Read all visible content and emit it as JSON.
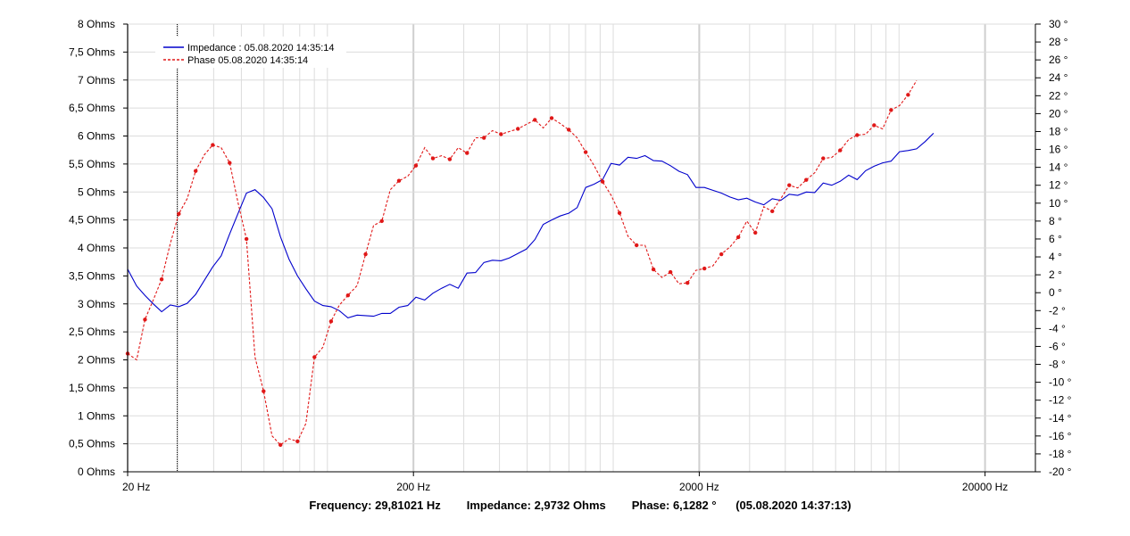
{
  "readout": {
    "frequency": "Frequency: 29,81021 Hz",
    "impedance": "Impedance: 2,9732 Ohms",
    "phase": "Phase: 6,1282 °",
    "timestamp": "(05.08.2020 14:37:13)"
  },
  "chart_data": {
    "type": "line",
    "x_scale": "log",
    "xlim": [
      20,
      30000
    ],
    "ylim_left": [
      0,
      8
    ],
    "ylim_right": [
      -20,
      30
    ],
    "grid": true,
    "legend_position": "top-left",
    "cursor_frequency": 29.81021,
    "x_ticks": [
      {
        "value": 20,
        "label": "20 Hz"
      },
      {
        "value": 200,
        "label": "200 Hz"
      },
      {
        "value": 2000,
        "label": "2000 Hz"
      },
      {
        "value": 20000,
        "label": "20000 Hz"
      }
    ],
    "y_left_ticks": [
      {
        "value": 0,
        "label": "0 Ohms"
      },
      {
        "value": 0.5,
        "label": "0,5 Ohms"
      },
      {
        "value": 1,
        "label": "1 Ohms"
      },
      {
        "value": 1.5,
        "label": "1,5 Ohms"
      },
      {
        "value": 2,
        "label": "2 Ohms"
      },
      {
        "value": 2.5,
        "label": "2,5 Ohms"
      },
      {
        "value": 3,
        "label": "3 Ohms"
      },
      {
        "value": 3.5,
        "label": "3,5 Ohms"
      },
      {
        "value": 4,
        "label": "4 Ohms"
      },
      {
        "value": 4.5,
        "label": "4,5 Ohms"
      },
      {
        "value": 5,
        "label": "5 Ohms"
      },
      {
        "value": 5.5,
        "label": "5,5 Ohms"
      },
      {
        "value": 6,
        "label": "6 Ohms"
      },
      {
        "value": 6.5,
        "label": "6,5 Ohms"
      },
      {
        "value": 7,
        "label": "7 Ohms"
      },
      {
        "value": 7.5,
        "label": "7,5 Ohms"
      },
      {
        "value": 8,
        "label": "8 Ohms"
      }
    ],
    "y_right_ticks": [
      {
        "value": -20,
        "label": "-20 °"
      },
      {
        "value": -18,
        "label": "-18 °"
      },
      {
        "value": -16,
        "label": "-16 °"
      },
      {
        "value": -14,
        "label": "-14 °"
      },
      {
        "value": -12,
        "label": "-12 °"
      },
      {
        "value": -10,
        "label": "-10 °"
      },
      {
        "value": -8,
        "label": "-8 °"
      },
      {
        "value": -6,
        "label": "-6 °"
      },
      {
        "value": -4,
        "label": "-4 °"
      },
      {
        "value": -2,
        "label": "-2 °"
      },
      {
        "value": 0,
        "label": "0 °"
      },
      {
        "value": 2,
        "label": "2 °"
      },
      {
        "value": 4,
        "label": "4 °"
      },
      {
        "value": 6,
        "label": "6 °"
      },
      {
        "value": 8,
        "label": "8 °"
      },
      {
        "value": 10,
        "label": "10 °"
      },
      {
        "value": 12,
        "label": "12 °"
      },
      {
        "value": 14,
        "label": "14 °"
      },
      {
        "value": 16,
        "label": "16 °"
      },
      {
        "value": 18,
        "label": "18 °"
      },
      {
        "value": 20,
        "label": "20 °"
      },
      {
        "value": 22,
        "label": "22 °"
      },
      {
        "value": 24,
        "label": "24 °"
      },
      {
        "value": 26,
        "label": "26 °"
      },
      {
        "value": 28,
        "label": "28 °"
      },
      {
        "value": 30,
        "label": "30 °"
      }
    ],
    "series": [
      {
        "name": "Impedance : 05.08.2020 14:35:14",
        "axis": "left",
        "color": "#0000cc",
        "style": "solid",
        "points": [
          [
            20,
            3.62
          ],
          [
            21.5,
            3.32
          ],
          [
            23,
            3.15
          ],
          [
            24.6,
            3.0
          ],
          [
            26.3,
            2.86
          ],
          [
            28.2,
            2.98
          ],
          [
            30.2,
            2.95
          ],
          [
            32.3,
            3.01
          ],
          [
            34.6,
            3.17
          ],
          [
            37.1,
            3.42
          ],
          [
            39.7,
            3.66
          ],
          [
            42.5,
            3.86
          ],
          [
            45.5,
            4.25
          ],
          [
            48.7,
            4.62
          ],
          [
            52.1,
            4.98
          ],
          [
            55.8,
            5.04
          ],
          [
            59.8,
            4.9
          ],
          [
            64,
            4.7
          ],
          [
            68.5,
            4.2
          ],
          [
            73.4,
            3.8
          ],
          [
            78.6,
            3.5
          ],
          [
            84.1,
            3.27
          ],
          [
            90.1,
            3.05
          ],
          [
            96.4,
            2.97
          ],
          [
            103,
            2.95
          ],
          [
            110,
            2.88
          ],
          [
            118,
            2.75
          ],
          [
            127,
            2.8
          ],
          [
            136,
            2.79
          ],
          [
            145,
            2.78
          ],
          [
            155,
            2.83
          ],
          [
            166,
            2.83
          ],
          [
            178,
            2.94
          ],
          [
            191,
            2.97
          ],
          [
            204,
            3.12
          ],
          [
            219,
            3.07
          ],
          [
            234,
            3.19
          ],
          [
            251,
            3.28
          ],
          [
            268,
            3.35
          ],
          [
            287,
            3.28
          ],
          [
            308,
            3.55
          ],
          [
            330,
            3.56
          ],
          [
            353,
            3.74
          ],
          [
            378,
            3.78
          ],
          [
            405,
            3.77
          ],
          [
            433,
            3.82
          ],
          [
            464,
            3.9
          ],
          [
            497,
            3.98
          ],
          [
            532,
            4.15
          ],
          [
            569,
            4.42
          ],
          [
            609,
            4.5
          ],
          [
            652,
            4.57
          ],
          [
            699,
            4.62
          ],
          [
            748,
            4.72
          ],
          [
            801,
            5.08
          ],
          [
            857,
            5.14
          ],
          [
            918,
            5.22
          ],
          [
            983,
            5.51
          ],
          [
            1052,
            5.48
          ],
          [
            1127,
            5.62
          ],
          [
            1207,
            5.6
          ],
          [
            1292,
            5.65
          ],
          [
            1383,
            5.56
          ],
          [
            1481,
            5.55
          ],
          [
            1586,
            5.47
          ],
          [
            1698,
            5.37
          ],
          [
            1819,
            5.31
          ],
          [
            1947,
            5.08
          ],
          [
            2085,
            5.08
          ],
          [
            2233,
            5.03
          ],
          [
            2390,
            4.98
          ],
          [
            2560,
            4.91
          ],
          [
            2740,
            4.86
          ],
          [
            2934,
            4.89
          ],
          [
            3142,
            4.82
          ],
          [
            3364,
            4.77
          ],
          [
            3602,
            4.88
          ],
          [
            3857,
            4.85
          ],
          [
            4130,
            4.96
          ],
          [
            4422,
            4.94
          ],
          [
            4735,
            5.0
          ],
          [
            5070,
            4.99
          ],
          [
            5429,
            5.16
          ],
          [
            5813,
            5.12
          ],
          [
            6224,
            5.19
          ],
          [
            6664,
            5.3
          ],
          [
            7136,
            5.22
          ],
          [
            7641,
            5.38
          ],
          [
            8182,
            5.46
          ],
          [
            8760,
            5.52
          ],
          [
            9380,
            5.55
          ],
          [
            10044,
            5.72
          ],
          [
            10755,
            5.74
          ],
          [
            11516,
            5.77
          ],
          [
            12330,
            5.9
          ],
          [
            13203,
            6.05
          ]
        ]
      },
      {
        "name": "Phase  05.08.2020 14:35:14",
        "axis": "right",
        "color": "#e01818",
        "style": "dashed",
        "points": [
          [
            20,
            -6.8
          ],
          [
            21.5,
            -7.5
          ],
          [
            23,
            -3.0
          ],
          [
            24.6,
            -0.8
          ],
          [
            26.3,
            1.5
          ],
          [
            28.2,
            5.5
          ],
          [
            30.2,
            8.8
          ],
          [
            32.3,
            10.5
          ],
          [
            34.6,
            13.6
          ],
          [
            37.1,
            15.4
          ],
          [
            39.7,
            16.5
          ],
          [
            42.5,
            16.2
          ],
          [
            45.5,
            14.5
          ],
          [
            48.7,
            10.0
          ],
          [
            52.1,
            6.0
          ],
          [
            55.8,
            -7.2
          ],
          [
            59.8,
            -11.0
          ],
          [
            64,
            -16.0
          ],
          [
            68.5,
            -17.0
          ],
          [
            73.4,
            -16.3
          ],
          [
            78.6,
            -16.6
          ],
          [
            84.1,
            -14.6
          ],
          [
            90.1,
            -7.2
          ],
          [
            96.4,
            -6.1
          ],
          [
            103,
            -3.2
          ],
          [
            110,
            -1.4
          ],
          [
            118,
            -0.3
          ],
          [
            127,
            0.8
          ],
          [
            136,
            4.3
          ],
          [
            145,
            7.5
          ],
          [
            155,
            8.0
          ],
          [
            166,
            11.5
          ],
          [
            178,
            12.5
          ],
          [
            191,
            13.0
          ],
          [
            204,
            14.2
          ],
          [
            219,
            16.2
          ],
          [
            234,
            15.0
          ],
          [
            251,
            15.3
          ],
          [
            268,
            14.9
          ],
          [
            287,
            16.2
          ],
          [
            308,
            15.6
          ],
          [
            330,
            17.3
          ],
          [
            353,
            17.3
          ],
          [
            378,
            18.1
          ],
          [
            405,
            17.7
          ],
          [
            433,
            18.0
          ],
          [
            464,
            18.3
          ],
          [
            497,
            18.8
          ],
          [
            532,
            19.3
          ],
          [
            569,
            18.4
          ],
          [
            609,
            19.5
          ],
          [
            652,
            18.9
          ],
          [
            699,
            18.2
          ],
          [
            748,
            17.3
          ],
          [
            801,
            15.7
          ],
          [
            857,
            14.2
          ],
          [
            918,
            12.4
          ],
          [
            983,
            10.9
          ],
          [
            1052,
            8.9
          ],
          [
            1127,
            6.3
          ],
          [
            1207,
            5.3
          ],
          [
            1292,
            5.3
          ],
          [
            1383,
            2.6
          ],
          [
            1481,
            1.7
          ],
          [
            1586,
            2.3
          ],
          [
            1698,
            1.0
          ],
          [
            1819,
            1.1
          ],
          [
            1947,
            2.5
          ],
          [
            2085,
            2.7
          ],
          [
            2233,
            3.0
          ],
          [
            2390,
            4.3
          ],
          [
            2560,
            5.1
          ],
          [
            2740,
            6.2
          ],
          [
            2934,
            8.0
          ],
          [
            3142,
            6.7
          ],
          [
            3364,
            9.6
          ],
          [
            3602,
            9.1
          ],
          [
            3857,
            10.5
          ],
          [
            4130,
            12.0
          ],
          [
            4422,
            11.7
          ],
          [
            4735,
            12.6
          ],
          [
            5070,
            13.4
          ],
          [
            5429,
            15.0
          ],
          [
            5813,
            15.1
          ],
          [
            6224,
            15.9
          ],
          [
            6664,
            17.1
          ],
          [
            7136,
            17.6
          ],
          [
            7641,
            17.7
          ],
          [
            8182,
            18.7
          ],
          [
            8760,
            18.3
          ],
          [
            9380,
            20.4
          ],
          [
            10044,
            20.9
          ],
          [
            10755,
            22.1
          ],
          [
            11516,
            23.7
          ]
        ]
      }
    ]
  }
}
